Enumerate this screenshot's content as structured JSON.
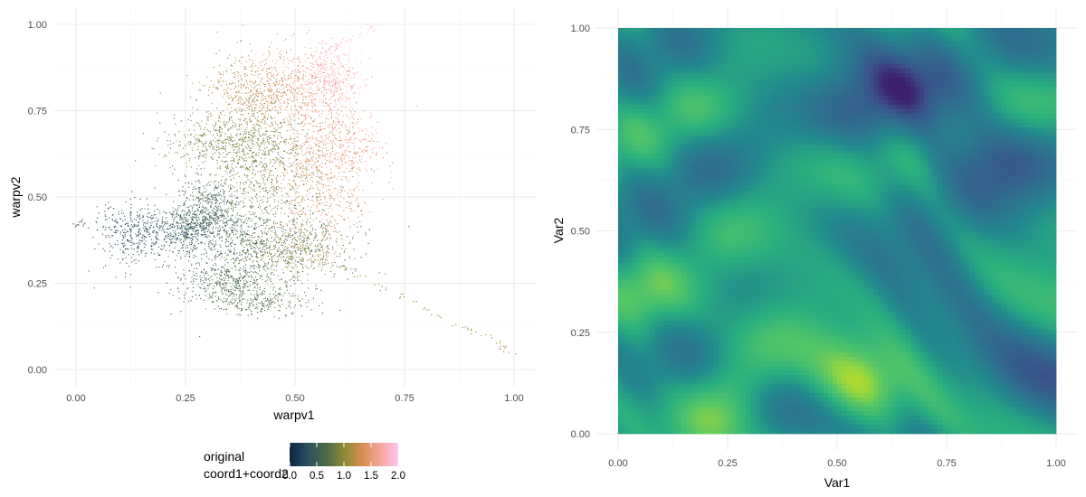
{
  "chart_data": [
    {
      "type": "scatter",
      "xlabel": "warpv1",
      "ylabel": "warpv2",
      "xlim": [
        0,
        1
      ],
      "ylim": [
        0,
        1
      ],
      "xticks": [
        "0.00",
        "0.25",
        "0.50",
        "0.75",
        "1.00"
      ],
      "yticks": [
        "0.00",
        "0.25",
        "0.50",
        "0.75",
        "1.00"
      ],
      "grid": true,
      "color_scale": {
        "title_line1": "original",
        "title_line2": "coord1+coord2",
        "range": [
          0,
          2
        ],
        "ticks": [
          "0.0",
          "0.5",
          "1.0",
          "1.5",
          "2.0"
        ],
        "colors": [
          "#0a2448",
          "#2a5060",
          "#4b6a45",
          "#8c8a36",
          "#d68e50",
          "#f7a49a",
          "#ffc5ef"
        ],
        "placement": "bottom"
      },
      "point_clusters": [
        {
          "x": 0.38,
          "y": 0.36,
          "sx": 0.12,
          "sy": 0.07,
          "n": 900,
          "c": 0.55
        },
        {
          "x": 0.25,
          "y": 0.41,
          "sx": 0.06,
          "sy": 0.03,
          "n": 500,
          "c": 0.4
        },
        {
          "x": 0.12,
          "y": 0.4,
          "sx": 0.04,
          "sy": 0.04,
          "n": 250,
          "c": 0.3
        },
        {
          "x": 0.3,
          "y": 0.48,
          "sx": 0.04,
          "sy": 0.04,
          "n": 350,
          "c": 0.55
        },
        {
          "x": 0.35,
          "y": 0.25,
          "sx": 0.05,
          "sy": 0.03,
          "n": 350,
          "c": 0.6
        },
        {
          "x": 0.42,
          "y": 0.6,
          "sx": 0.06,
          "sy": 0.1,
          "n": 700,
          "c": 0.9
        },
        {
          "x": 0.33,
          "y": 0.66,
          "sx": 0.07,
          "sy": 0.04,
          "n": 400,
          "c": 0.85
        },
        {
          "x": 0.4,
          "y": 0.8,
          "sx": 0.05,
          "sy": 0.06,
          "n": 450,
          "c": 1.2
        },
        {
          "x": 0.52,
          "y": 0.82,
          "sx": 0.06,
          "sy": 0.06,
          "n": 500,
          "c": 1.55
        },
        {
          "x": 0.55,
          "y": 0.55,
          "sx": 0.06,
          "sy": 0.09,
          "n": 550,
          "c": 1.35
        },
        {
          "x": 0.6,
          "y": 0.66,
          "sx": 0.05,
          "sy": 0.05,
          "n": 350,
          "c": 1.6
        },
        {
          "x": 0.58,
          "y": 0.84,
          "sx": 0.03,
          "sy": 0.04,
          "n": 300,
          "c": 1.85
        },
        {
          "x": 0.49,
          "y": 0.35,
          "sx": 0.06,
          "sy": 0.04,
          "n": 400,
          "c": 1.0
        },
        {
          "x": 0.42,
          "y": 0.2,
          "sx": 0.06,
          "sy": 0.02,
          "n": 200,
          "c": 0.7
        }
      ],
      "point_streaks": [
        {
          "x0": 0.6,
          "y0": 0.3,
          "x1": 1.0,
          "y1": 0.05,
          "n": 60,
          "c": 1.1
        },
        {
          "x0": 0.55,
          "y0": 0.9,
          "x1": 0.68,
          "y1": 1.0,
          "n": 50,
          "c": 1.95
        },
        {
          "x0": 0.0,
          "y0": 0.42,
          "x1": 0.02,
          "y1": 0.43,
          "n": 12,
          "c": 0.45
        }
      ]
    },
    {
      "type": "heatmap",
      "xlabel": "Var1",
      "ylabel": "Var2",
      "xlim": [
        0,
        1
      ],
      "ylim": [
        0,
        1
      ],
      "xticks": [
        "0.00",
        "0.25",
        "0.50",
        "0.75",
        "1.00"
      ],
      "yticks": [
        "0.00",
        "0.25",
        "0.50",
        "0.75",
        "1.00"
      ],
      "grid": true,
      "colors": [
        "#3e1f6e",
        "#39568c",
        "#2d708e",
        "#238a8d",
        "#29af7f",
        "#55c667",
        "#b8de29",
        "#e7e419"
      ]
    }
  ]
}
